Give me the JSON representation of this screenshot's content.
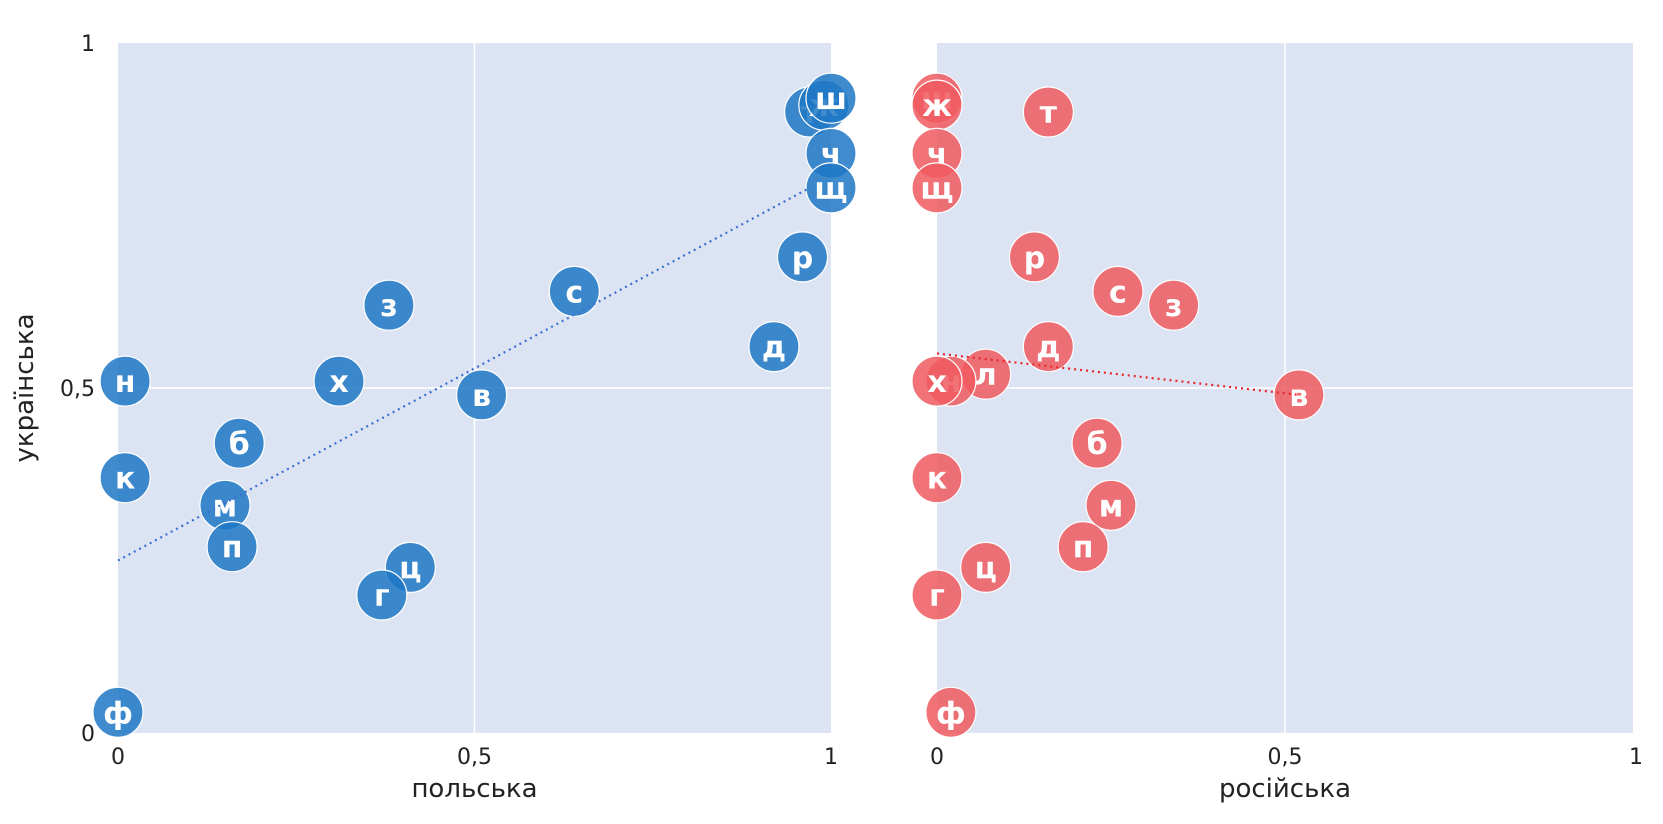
{
  "chart_data": [
    {
      "type": "scatter",
      "xlabel": "польська",
      "ylabel": "українська",
      "xlim": [
        0,
        1
      ],
      "ylim": [
        0,
        1
      ],
      "x_ticks": [
        "0",
        "0,5",
        "1"
      ],
      "y_ticks": [
        "0",
        "0,5",
        "1"
      ],
      "grid": true,
      "color": "#1f77c4",
      "trendline": {
        "x": [
          0,
          0.97
        ],
        "y": [
          0.25,
          0.79
        ]
      },
      "points": [
        {
          "label": "т",
          "x": 0.97,
          "y": 0.9
        },
        {
          "label": "ж",
          "x": 0.99,
          "y": 0.91
        },
        {
          "label": "ш",
          "x": 1.0,
          "y": 0.92
        },
        {
          "label": "ч",
          "x": 1.0,
          "y": 0.84
        },
        {
          "label": "щ",
          "x": 1.0,
          "y": 0.79
        },
        {
          "label": "р",
          "x": 0.96,
          "y": 0.69
        },
        {
          "label": "с",
          "x": 0.64,
          "y": 0.64
        },
        {
          "label": "з",
          "x": 0.38,
          "y": 0.62
        },
        {
          "label": "д",
          "x": 0.92,
          "y": 0.56
        },
        {
          "label": "н",
          "x": 0.01,
          "y": 0.51
        },
        {
          "label": "х",
          "x": 0.31,
          "y": 0.51
        },
        {
          "label": "в",
          "x": 0.51,
          "y": 0.49
        },
        {
          "label": "б",
          "x": 0.17,
          "y": 0.42
        },
        {
          "label": "к",
          "x": 0.01,
          "y": 0.37
        },
        {
          "label": "м",
          "x": 0.15,
          "y": 0.33
        },
        {
          "label": "п",
          "x": 0.16,
          "y": 0.27
        },
        {
          "label": "ц",
          "x": 0.41,
          "y": 0.24
        },
        {
          "label": "г",
          "x": 0.37,
          "y": 0.2
        },
        {
          "label": "ф",
          "x": 0.0,
          "y": 0.03
        }
      ]
    },
    {
      "type": "scatter",
      "xlabel": "російська",
      "ylabel": "",
      "xlim": [
        0,
        1
      ],
      "ylim": [
        0,
        1
      ],
      "x_ticks": [
        "0",
        "0,5",
        "1"
      ],
      "grid": true,
      "color": "#f05a5f",
      "trendline": {
        "x": [
          0,
          0.52
        ],
        "y": [
          0.55,
          0.49
        ]
      },
      "points": [
        {
          "label": "ш",
          "x": 0.0,
          "y": 0.92
        },
        {
          "label": "ж",
          "x": 0.0,
          "y": 0.91
        },
        {
          "label": "т",
          "x": 0.16,
          "y": 0.9
        },
        {
          "label": "ч",
          "x": 0.0,
          "y": 0.84
        },
        {
          "label": "щ",
          "x": 0.0,
          "y": 0.79
        },
        {
          "label": "р",
          "x": 0.14,
          "y": 0.69
        },
        {
          "label": "с",
          "x": 0.26,
          "y": 0.64
        },
        {
          "label": "з",
          "x": 0.34,
          "y": 0.62
        },
        {
          "label": "д",
          "x": 0.16,
          "y": 0.56
        },
        {
          "label": "л",
          "x": 0.07,
          "y": 0.52
        },
        {
          "label": "н",
          "x": 0.02,
          "y": 0.51
        },
        {
          "label": "х",
          "x": 0.0,
          "y": 0.51
        },
        {
          "label": "в",
          "x": 0.52,
          "y": 0.49
        },
        {
          "label": "б",
          "x": 0.23,
          "y": 0.42
        },
        {
          "label": "к",
          "x": 0.0,
          "y": 0.37
        },
        {
          "label": "м",
          "x": 0.25,
          "y": 0.33
        },
        {
          "label": "п",
          "x": 0.21,
          "y": 0.27
        },
        {
          "label": "ц",
          "x": 0.07,
          "y": 0.24
        },
        {
          "label": "г",
          "x": 0.0,
          "y": 0.2
        },
        {
          "label": "ф",
          "x": 0.02,
          "y": 0.03
        }
      ]
    }
  ]
}
